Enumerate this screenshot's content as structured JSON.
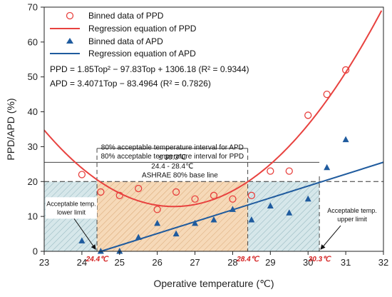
{
  "chart_data": {
    "type": "scatter",
    "x_axis": {
      "label": "Operative temperature (℃)",
      "min": 23,
      "max": 32,
      "ticks": [
        "23",
        "24",
        "25",
        "26",
        "27",
        "28",
        "29",
        "30",
        "31",
        "32"
      ]
    },
    "y_axis": {
      "label": "PPD/APD (%)",
      "min": 0,
      "max": 70,
      "ticks": [
        "0",
        "10",
        "20",
        "30",
        "40",
        "50",
        "60",
        "70"
      ]
    },
    "series": [
      {
        "name": "Binned data of PPD",
        "kind": "scatter",
        "marker": "open-circle",
        "color": "#e8423f",
        "x": [
          24.0,
          24.5,
          25.0,
          25.5,
          26.0,
          26.5,
          27.0,
          27.5,
          28.0,
          28.5,
          29.0,
          29.5,
          30.0,
          30.5,
          31.0
        ],
        "y": [
          22,
          17,
          16,
          18,
          12,
          17,
          15,
          16,
          15,
          16,
          23,
          23,
          39,
          45,
          52
        ]
      },
      {
        "name": "Regression equation of PPD",
        "kind": "curve",
        "color": "#e8423f",
        "coefficients": [
          1.85,
          -97.83,
          1306.18
        ]
      },
      {
        "name": "Binned data of APD",
        "kind": "scatter",
        "marker": "filled-triangle",
        "color": "#1f5b9e",
        "x": [
          24.0,
          24.5,
          25.0,
          25.5,
          26.0,
          26.5,
          27.0,
          27.5,
          28.0,
          28.5,
          29.0,
          29.5,
          30.0,
          30.5,
          31.0
        ],
        "y": [
          3,
          0,
          0,
          4,
          8,
          5,
          8,
          9,
          12,
          9,
          13,
          11,
          15,
          24,
          32
        ]
      },
      {
        "name": "Regression equation of APD",
        "kind": "line",
        "color": "#1f5b9e",
        "slope": 3.4071,
        "intercept": -83.4964
      }
    ],
    "equations": {
      "ppd": "PPD = 1.85Top² − 97.83Top + 1306.18 (R² = 0.9344)",
      "apd": "APD = 3.4071Top − 83.4964 (R² = 0.7826)"
    },
    "baseline": {
      "y": 20,
      "label": "ASHRAE 80% base line"
    },
    "intervals": {
      "ppd": {
        "x_start": 24.4,
        "x_end": 28.4,
        "y_level": 29.5,
        "label_line1": "80% acceptable temperature interval for PPD",
        "label_line2": "24.4 - 28.4℃"
      },
      "apd": {
        "x_start": 24.4,
        "x_end": 30.3,
        "y_level": 21.5,
        "label_line1": "80% acceptable temperature interval for APD",
        "label_line2": "≤ 30.3℃"
      }
    },
    "shaded_regions": [
      {
        "x_start": 23,
        "x_end": 24.4,
        "y_top": 20,
        "fill": "#c8dde2"
      },
      {
        "x_start": 24.4,
        "x_end": 28.4,
        "y_top": 20,
        "fill": "#f2cfa8"
      },
      {
        "x_start": 28.4,
        "x_end": 30.3,
        "y_top": 20,
        "fill": "#c8dde2"
      }
    ],
    "annotations": {
      "lower": {
        "line1": "Acceptable temp.",
        "line2": "lower limit"
      },
      "upper": {
        "line1": "Acceptable temp.",
        "line2": "upper limit"
      },
      "mark_24_4": {
        "x": 24.4,
        "text": "24.4℃"
      },
      "mark_28_4": {
        "x": 28.4,
        "text": "28.4℃"
      },
      "mark_30_3": {
        "x": 30.3,
        "text": "30.3℃"
      }
    },
    "legend": {
      "position": "top-left"
    },
    "grid": false
  }
}
